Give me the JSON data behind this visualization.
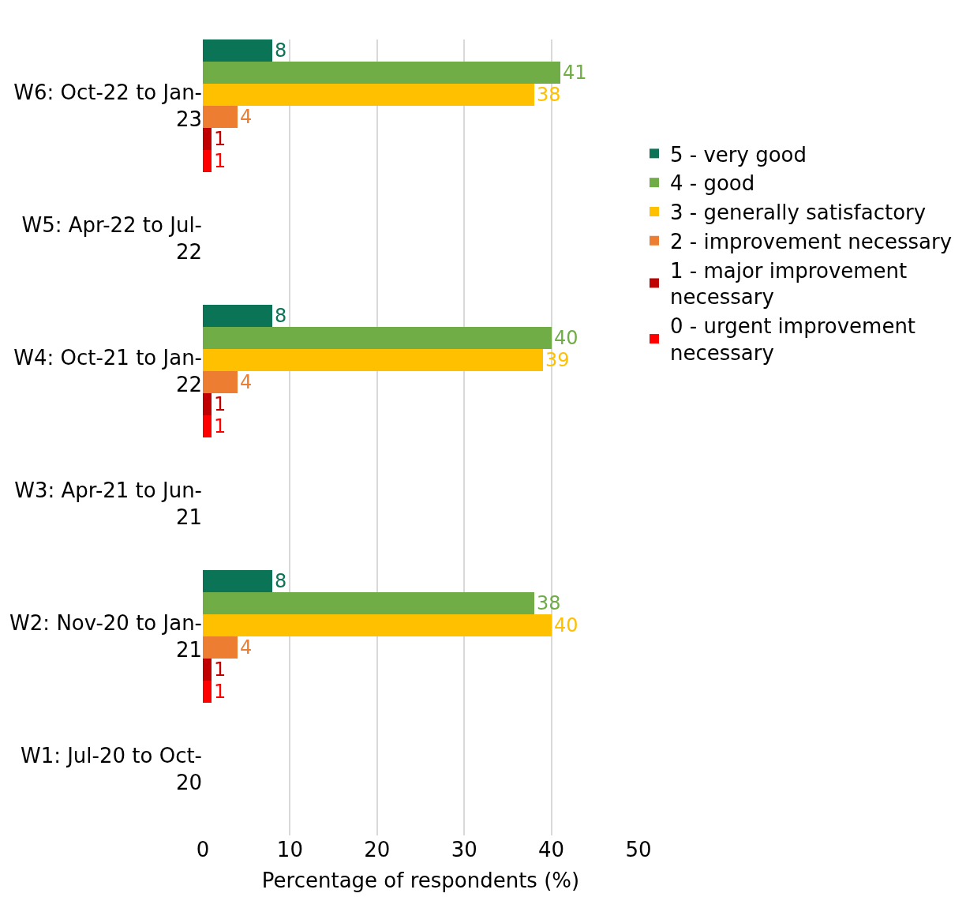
{
  "chart_data": {
    "type": "bar",
    "orientation": "horizontal",
    "xlabel": "Percentage of respondents (%)",
    "categories": [
      "W6: Oct-22 to Jan-23",
      "W5: Apr-22 to Jul-22",
      "W4: Oct-21 to Jan-22",
      "W3: Apr-21 to Jun-21",
      "W2: Nov-20 to Jan-21",
      "W1: Jul-20 to Oct-20"
    ],
    "series": [
      {
        "name": "5 - very good",
        "color": "#0b7356",
        "values": [
          8,
          null,
          8,
          null,
          8,
          null
        ]
      },
      {
        "name": "4 - good",
        "color": "#70ad47",
        "values": [
          41,
          null,
          40,
          null,
          38,
          null
        ]
      },
      {
        "name": "3 - generally satisfactory",
        "color": "#ffc000",
        "values": [
          38,
          null,
          39,
          null,
          40,
          null
        ]
      },
      {
        "name": "2 - improvement necessary",
        "color": "#ed7d31",
        "values": [
          4,
          null,
          4,
          null,
          4,
          null
        ]
      },
      {
        "name": "1 - major improvement necessary",
        "color": "#c00000",
        "values": [
          1,
          null,
          1,
          null,
          1,
          null
        ]
      },
      {
        "name": "0 - urgent improvement necessary",
        "color": "#ff0000",
        "values": [
          1,
          null,
          1,
          null,
          1,
          null
        ]
      }
    ],
    "xlim": [
      0,
      50
    ],
    "xticks": [
      0,
      10,
      20,
      30,
      40,
      50
    ],
    "grid": "x",
    "legend": "right",
    "data_labels": true
  }
}
